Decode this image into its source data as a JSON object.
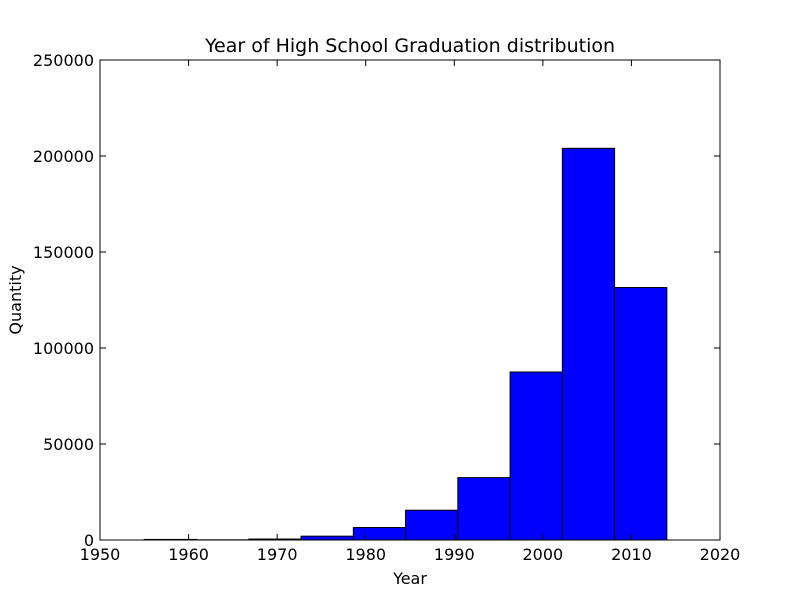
{
  "chart_data": {
    "type": "bar",
    "title": "Year of High School Graduation distribution",
    "xlabel": "Year",
    "ylabel": "Quantity",
    "xlim": [
      1950,
      2020
    ],
    "ylim": [
      0,
      250000
    ],
    "xticks": [
      1950,
      1960,
      1970,
      1980,
      1990,
      2000,
      2010,
      2020
    ],
    "yticks": [
      0,
      50000,
      100000,
      150000,
      200000,
      250000
    ],
    "bar_color": "#0000ff",
    "grid": false,
    "bins": [
      {
        "start": 1955.0,
        "end": 1960.9,
        "value": 300
      },
      {
        "start": 1960.9,
        "end": 1966.8,
        "value": 100
      },
      {
        "start": 1966.8,
        "end": 1972.7,
        "value": 500
      },
      {
        "start": 1972.7,
        "end": 1978.6,
        "value": 2000
      },
      {
        "start": 1978.6,
        "end": 1984.5,
        "value": 6500
      },
      {
        "start": 1984.5,
        "end": 1990.4,
        "value": 15500
      },
      {
        "start": 1990.4,
        "end": 1996.3,
        "value": 32500
      },
      {
        "start": 1996.3,
        "end": 2002.2,
        "value": 87500
      },
      {
        "start": 2002.2,
        "end": 2008.1,
        "value": 204000
      },
      {
        "start": 2008.1,
        "end": 2014.0,
        "value": 131500
      }
    ]
  }
}
